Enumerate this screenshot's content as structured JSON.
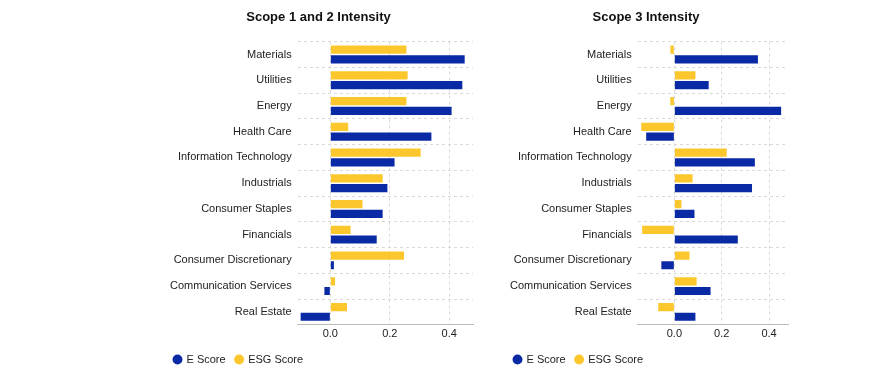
{
  "chart_data": [
    {
      "type": "bar",
      "orientation": "horizontal",
      "title": "Scope 1 and 2 Intensity",
      "categories": [
        "Materials",
        "Utilities",
        "Energy",
        "Health Care",
        "Information Technology",
        "Industrials",
        "Consumer Staples",
        "Financials",
        "Consumer Discretionary",
        "Communication Services",
        "Real Estate"
      ],
      "series": [
        {
          "name": "E Score",
          "color": "#0a2aa5",
          "values": [
            0.452,
            0.444,
            0.408,
            0.34,
            0.216,
            0.192,
            0.176,
            0.156,
            0.012,
            -0.02,
            -0.1
          ]
        },
        {
          "name": "ESG Score",
          "color": "#fcc72c",
          "values": [
            0.256,
            0.26,
            0.256,
            0.06,
            0.304,
            0.176,
            0.108,
            0.068,
            0.248,
            0.016,
            0.056
          ]
        }
      ],
      "xlim": [
        -0.11,
        0.48
      ],
      "xticks": [
        {
          "value": 0,
          "label": "0.0"
        },
        0.2,
        0.4
      ],
      "grid": true,
      "legend": "bottom"
    },
    {
      "type": "bar",
      "orientation": "horizontal",
      "title": "Scope 3 Intensity",
      "categories": [
        "Materials",
        "Utilities",
        "Energy",
        "Health Care",
        "Information Technology",
        "Industrials",
        "Consumer Staples",
        "Financials",
        "Consumer Discretionary",
        "Communication Services",
        "Real Estate"
      ],
      "series": [
        {
          "name": "E Score",
          "color": "#0a2aa5",
          "values": [
            0.353,
            0.145,
            0.451,
            -0.119,
            0.34,
            0.328,
            0.085,
            0.268,
            -0.055,
            0.153,
            0.089
          ]
        },
        {
          "name": "ESG Score",
          "color": "#fcc72c",
          "values": [
            -0.017,
            0.089,
            -0.017,
            -0.14,
            0.221,
            0.077,
            0.03,
            -0.136,
            0.064,
            0.094,
            -0.068
          ]
        }
      ],
      "xlim": [
        -0.155,
        0.48
      ],
      "xticks": [
        {
          "value": 0,
          "label": "0.0"
        },
        0.2,
        0.4
      ],
      "grid": true,
      "legend": "bottom"
    }
  ]
}
